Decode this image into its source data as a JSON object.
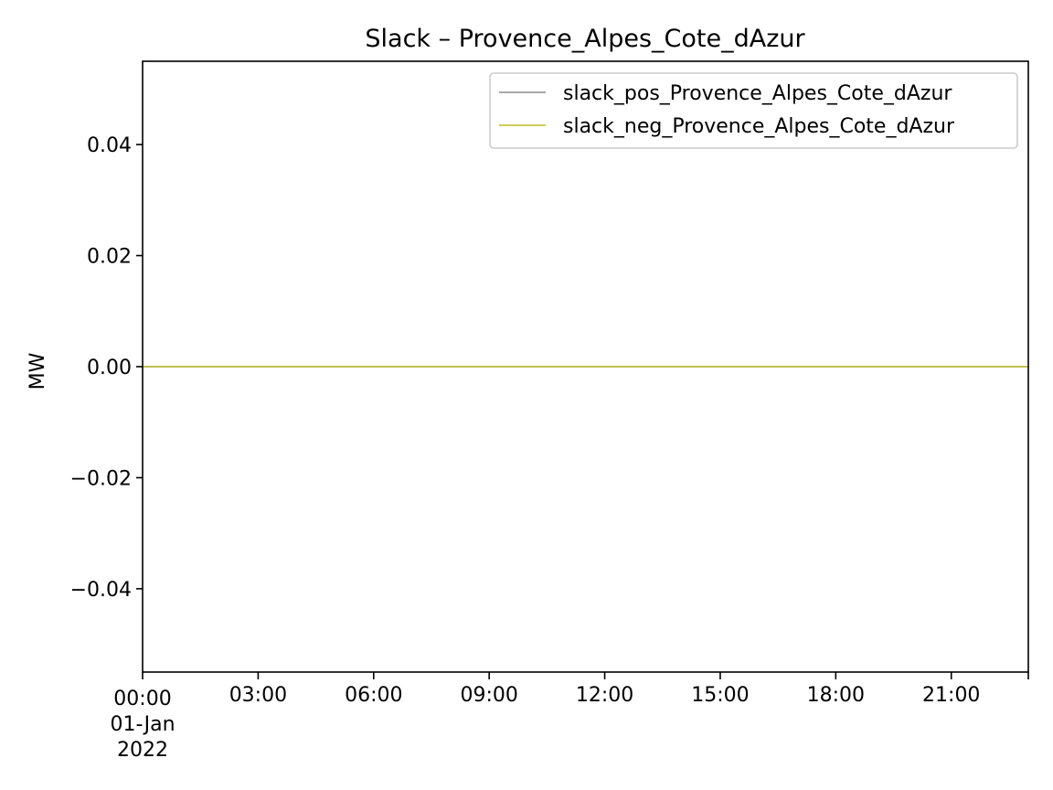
{
  "chart_data": {
    "type": "line",
    "title": "Slack – Provence_Alpes_Cote_dAzur",
    "xlabel": "",
    "ylabel": "MW",
    "ylim": [
      -0.055,
      0.055
    ],
    "y_ticks": [
      -0.04,
      -0.02,
      0.0,
      0.02,
      0.04
    ],
    "y_tick_labels": [
      "−0.04",
      "−0.02",
      "0.00",
      "0.02",
      "0.04"
    ],
    "x_range_hours": [
      0,
      23
    ],
    "x_ticks_hours": [
      0,
      3,
      6,
      9,
      12,
      15,
      18,
      21
    ],
    "x_tick_labels": [
      "00:00",
      "03:00",
      "06:00",
      "09:00",
      "12:00",
      "15:00",
      "18:00",
      "21:00"
    ],
    "x_date_label": [
      "01-Jan",
      "2022"
    ],
    "grid": false,
    "legend_position": "top-right",
    "series": [
      {
        "name": "slack_pos_Provence_Alpes_Cote_dAzur",
        "color": "#8c8c8c",
        "x_hours": [
          0,
          23
        ],
        "values": [
          0,
          0
        ]
      },
      {
        "name": "slack_neg_Provence_Alpes_Cote_dAzur",
        "color": "#bcbd22",
        "x_hours": [
          0,
          23
        ],
        "values": [
          0,
          0
        ]
      }
    ]
  }
}
